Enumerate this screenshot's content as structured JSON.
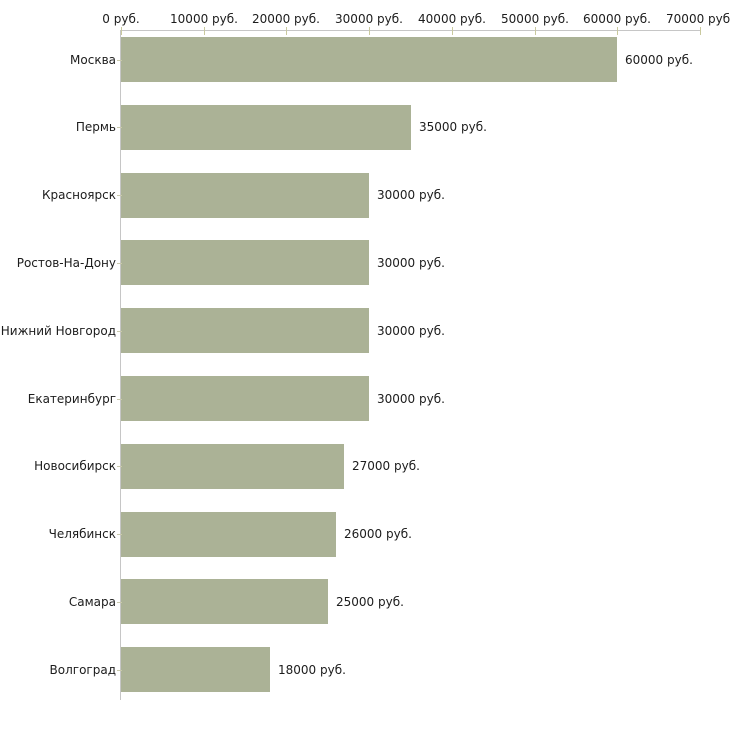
{
  "chart_data": {
    "type": "bar",
    "orientation": "horizontal",
    "title": "",
    "xlabel": "",
    "ylabel": "",
    "grid": false,
    "legend": null,
    "categories": [
      "Москва",
      "Пермь",
      "Красноярск",
      "Ростов-На-Дону",
      "Нижний Новгород",
      "Екатеринбург",
      "Новосибирск",
      "Челябинск",
      "Самара",
      "Волгоград"
    ],
    "values": [
      60000,
      35000,
      30000,
      30000,
      30000,
      30000,
      27000,
      26000,
      25000,
      18000
    ],
    "value_labels": [
      "60000 руб.",
      "35000 руб.",
      "30000 руб.",
      "30000 руб.",
      "30000 руб.",
      "30000 руб.",
      "27000 руб.",
      "26000 руб.",
      "25000 руб.",
      "18000 руб."
    ],
    "xlim": [
      0,
      70000
    ],
    "x_ticks": [
      0,
      10000,
      20000,
      30000,
      40000,
      50000,
      60000,
      70000
    ],
    "x_tick_labels": [
      "0 руб.",
      "10000 руб.",
      "20000 руб.",
      "30000 руб.",
      "40000 руб.",
      "50000 руб.",
      "60000 руб.",
      "70000 руб."
    ],
    "colors": {
      "bar": "#abb296",
      "axis_line": "#c6c6c6",
      "x_tick": "#c9c99e",
      "y_tick": "#c9c9ad",
      "text": "#1c1c1c",
      "background": "#ffffff"
    }
  }
}
